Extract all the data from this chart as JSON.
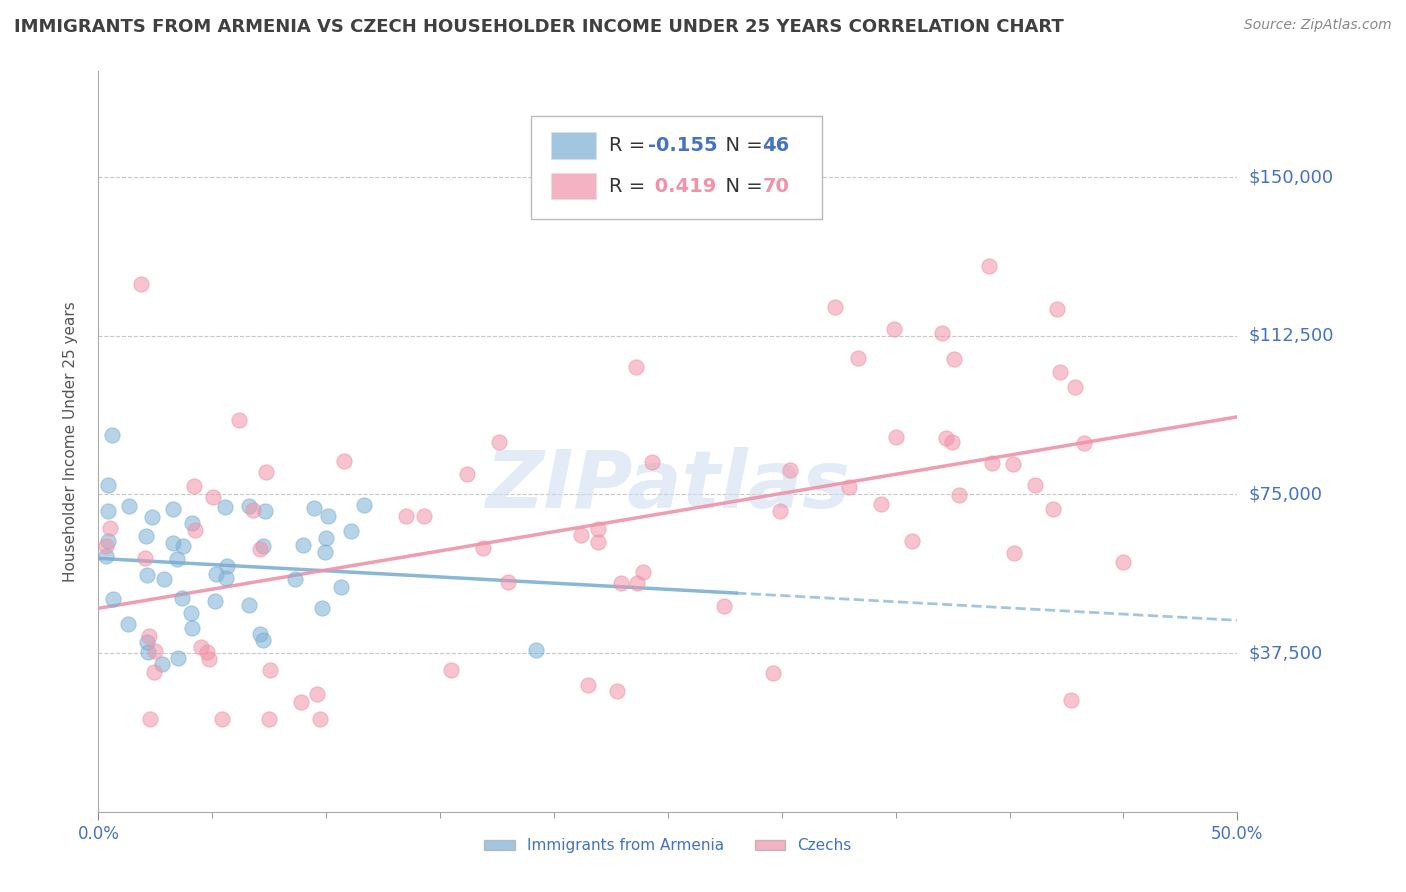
{
  "title": "IMMIGRANTS FROM ARMENIA VS CZECH HOUSEHOLDER INCOME UNDER 25 YEARS CORRELATION CHART",
  "source": "Source: ZipAtlas.com",
  "ylabel": "Householder Income Under 25 years",
  "xlim": [
    0.0,
    0.5
  ],
  "ylim": [
    0,
    175000
  ],
  "yticks": [
    37500,
    75000,
    112500,
    150000
  ],
  "ytick_labels": [
    "$37,500",
    "$75,000",
    "$112,500",
    "$150,000"
  ],
  "watermark": "ZIPatlas",
  "armenia_color": "#7bafd4",
  "czech_color": "#f093a8",
  "armenia_R": -0.155,
  "armenia_N": 46,
  "czech_R": 0.419,
  "czech_N": 70,
  "background_color": "#ffffff",
  "grid_color": "#c8c8c8",
  "axis_label_color": "#4472c4",
  "title_color": "#404040",
  "title_fontsize": 13,
  "legend_fontsize": 14,
  "legend_text_color": "#4472c4",
  "legend_num_color": "#4472c4"
}
